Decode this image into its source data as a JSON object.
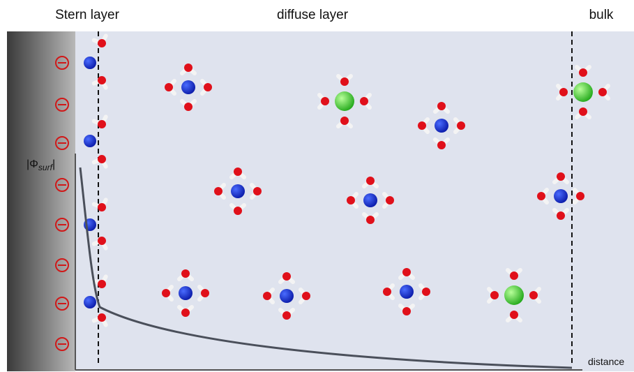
{
  "labels": {
    "stern": "Stern layer",
    "diffuse": "diffuse layer",
    "bulk": "bulk",
    "distance": "distance"
  },
  "potential_label": {
    "open": "|Φ",
    "sub": "surf",
    "close": "|"
  }
}
